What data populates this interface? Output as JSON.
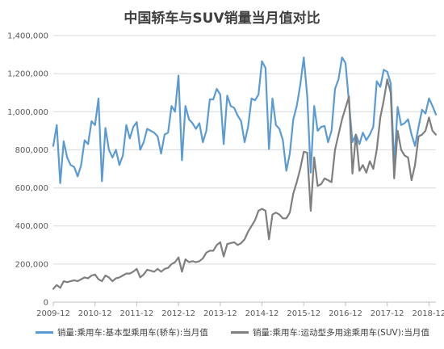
{
  "chart_data": {
    "type": "line",
    "title": "中国轿车与SUV销量当月值对比",
    "xlabel": "",
    "ylabel": "",
    "ylim": [
      0,
      1400000
    ],
    "yticks": [
      "0",
      "200,000",
      "400,000",
      "600,000",
      "800,000",
      "1,000,000",
      "1,200,000",
      "1,400,000"
    ],
    "xticks": [
      "2009-12",
      "2010-12",
      "2011-12",
      "2012-12",
      "2013-12",
      "2014-12",
      "2015-12",
      "2016-12",
      "2017-12",
      "2018-12"
    ],
    "x_start": "2009-12",
    "grid": true,
    "legend_position": "bottom",
    "series": [
      {
        "name": "销量:乘用车:基本型乘用车(轿车):当月值",
        "color": "#5b9bd5",
        "values": [
          820000,
          930000,
          625000,
          845000,
          760000,
          720000,
          710000,
          660000,
          720000,
          850000,
          830000,
          950000,
          930000,
          1070000,
          635000,
          915000,
          800000,
          760000,
          800000,
          720000,
          770000,
          930000,
          860000,
          920000,
          945000,
          800000,
          840000,
          910000,
          900000,
          890000,
          870000,
          780000,
          880000,
          890000,
          1030000,
          1000000,
          1190000,
          745000,
          1030000,
          960000,
          940000,
          910000,
          940000,
          840000,
          900000,
          1065000,
          1065000,
          1120000,
          1090000,
          830000,
          1085000,
          1030000,
          1020000,
          980000,
          950000,
          840000,
          920000,
          1070000,
          1060000,
          1090000,
          1265000,
          1230000,
          805000,
          1070000,
          930000,
          910000,
          850000,
          690000,
          780000,
          960000,
          1030000,
          1140000,
          1285000,
          1080000,
          680000,
          1030000,
          900000,
          920000,
          925000,
          840000,
          900000,
          1120000,
          1170000,
          1285000,
          1255000,
          1050000,
          840000,
          880000,
          830000,
          890000,
          850000,
          880000,
          920000,
          1160000,
          1130000,
          1220000,
          1210000,
          1150000,
          720000,
          1025000,
          930000,
          940000,
          960000,
          880000,
          820000,
          920000,
          1010000,
          990000,
          1070000,
          1030000,
          985000
        ]
      },
      {
        "name": "销量:乘用车:运动型多用途乘用车(SUV):当月值",
        "color": "#7f7f7f",
        "values": [
          70000,
          90000,
          75000,
          110000,
          105000,
          110000,
          115000,
          110000,
          120000,
          130000,
          125000,
          140000,
          145000,
          120000,
          110000,
          140000,
          130000,
          110000,
          125000,
          130000,
          140000,
          150000,
          150000,
          160000,
          175000,
          130000,
          145000,
          170000,
          165000,
          160000,
          175000,
          160000,
          175000,
          180000,
          200000,
          210000,
          235000,
          160000,
          225000,
          210000,
          215000,
          210000,
          215000,
          230000,
          260000,
          270000,
          270000,
          300000,
          315000,
          240000,
          305000,
          310000,
          315000,
          300000,
          310000,
          330000,
          370000,
          400000,
          430000,
          480000,
          490000,
          480000,
          330000,
          460000,
          470000,
          460000,
          440000,
          440000,
          470000,
          570000,
          630000,
          700000,
          790000,
          785000,
          480000,
          760000,
          610000,
          620000,
          650000,
          640000,
          630000,
          800000,
          880000,
          960000,
          1020000,
          1080000,
          675000,
          880000,
          690000,
          720000,
          680000,
          740000,
          700000,
          800000,
          970000,
          1060000,
          1170000,
          1100000,
          650000,
          900000,
          800000,
          770000,
          760000,
          640000,
          720000,
          870000,
          880000,
          900000,
          970000,
          900000,
          880000
        ]
      }
    ]
  }
}
